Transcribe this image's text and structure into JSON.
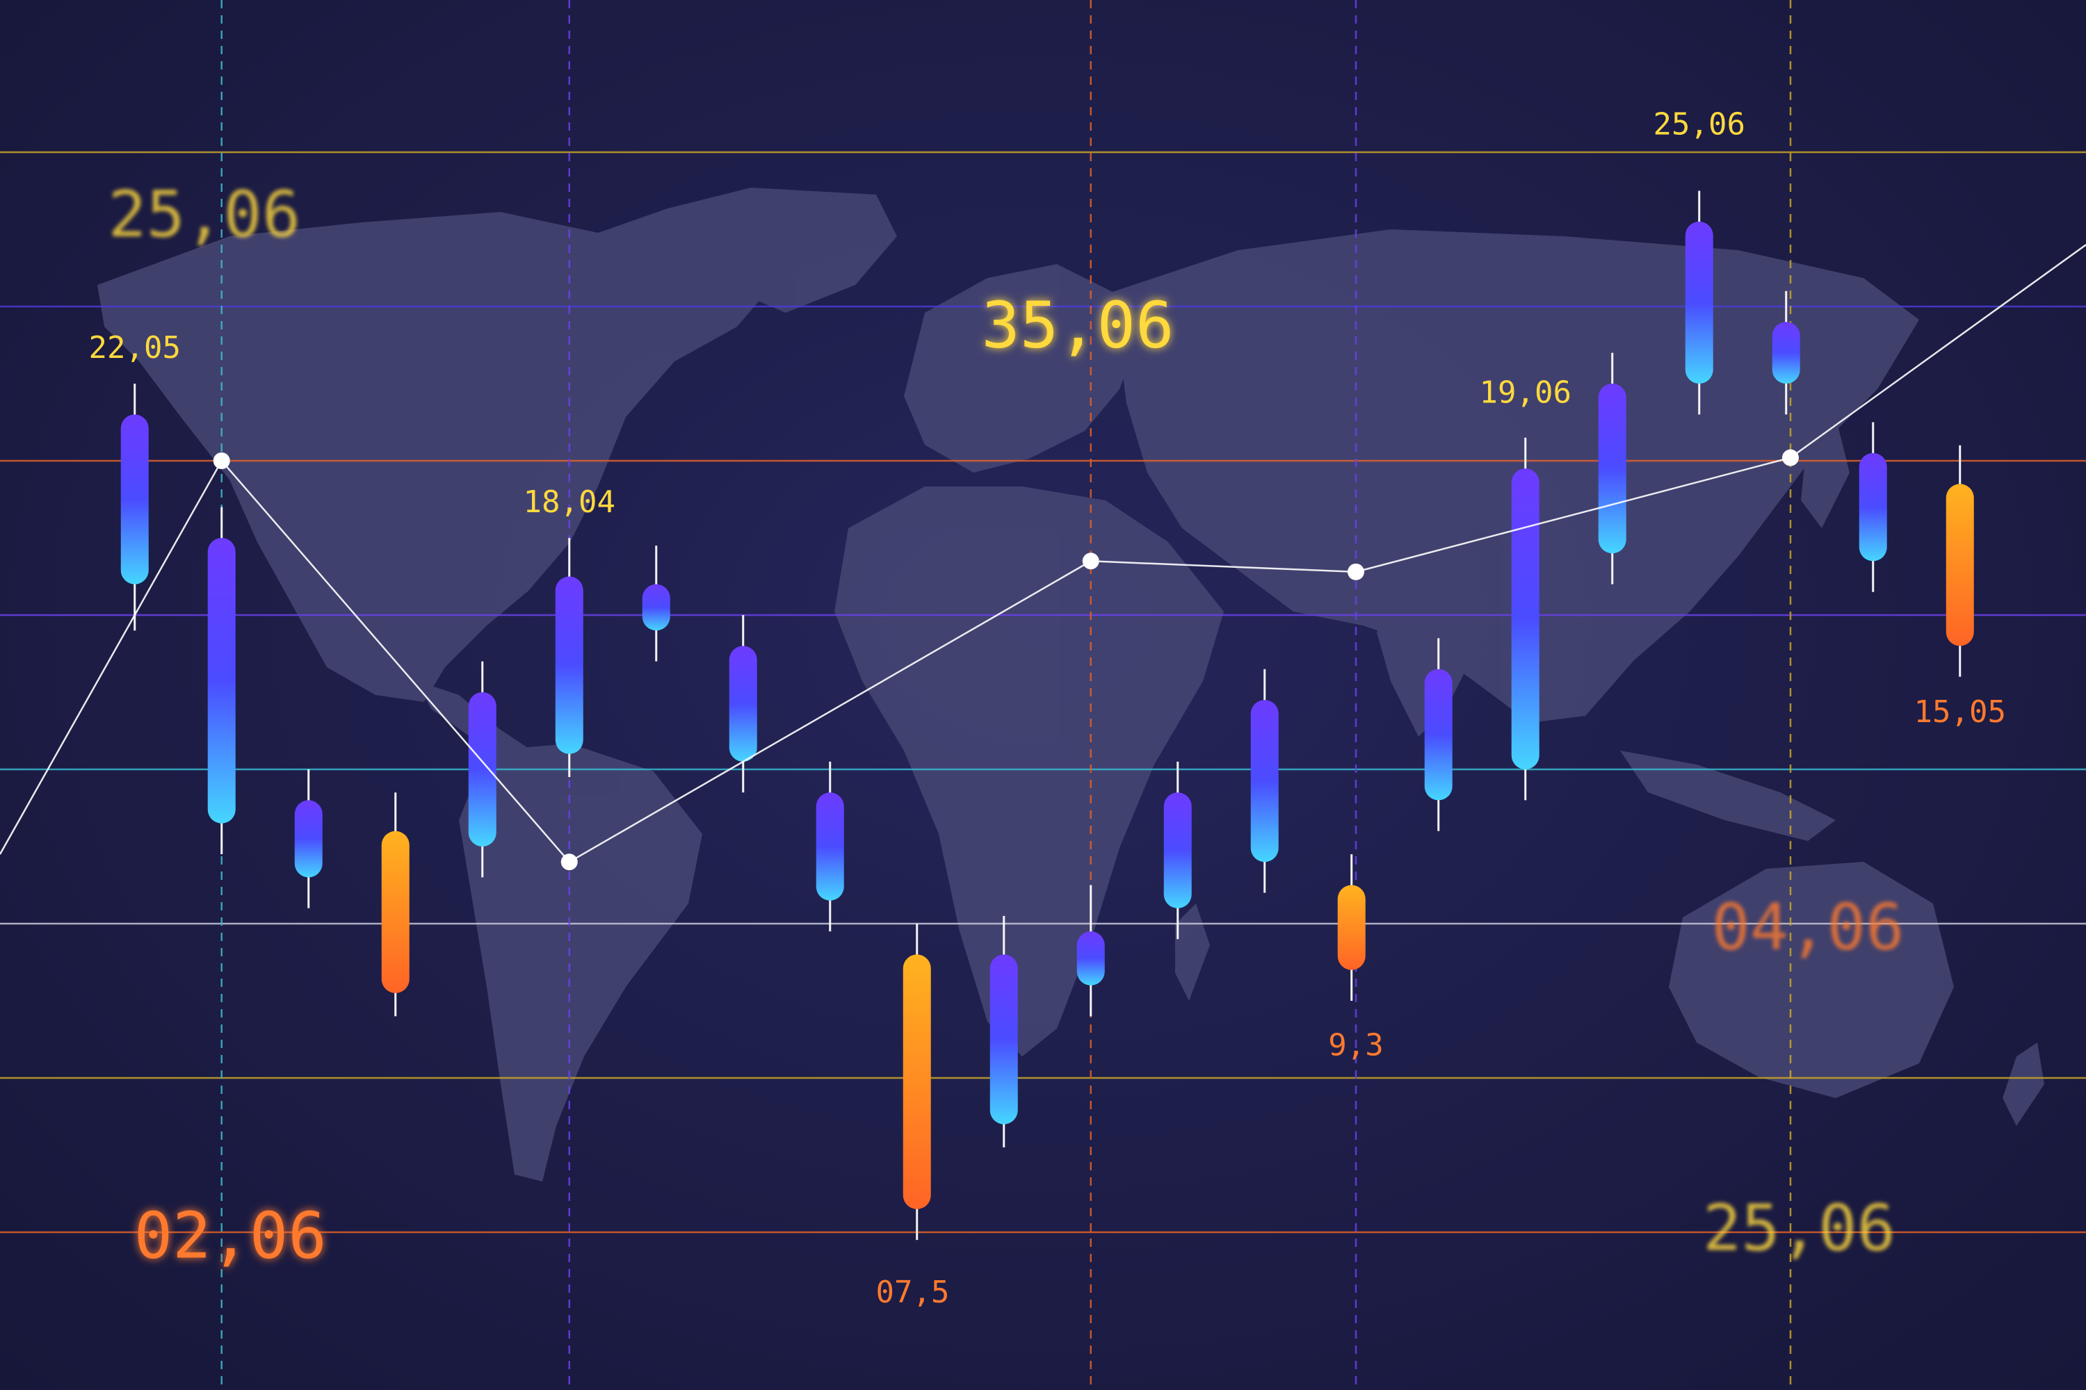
{
  "colors": {
    "background": "#1d1d47",
    "map": "#4a4a78",
    "candle_blue_top": "#6d3bff",
    "candle_blue_mid": "#4b4cff",
    "candle_blue_bottom": "#46d6ff",
    "candle_orange_top": "#ffb31f",
    "candle_orange_bottom": "#ff6426",
    "label_yellow": "#ffd93d",
    "label_orange": "#ff7a2e",
    "line_white": "#ffffff"
  },
  "chart_data": {
    "type": "candlestick",
    "title": "",
    "xlabel": "",
    "ylabel": "",
    "grid": true,
    "x_range": [
      0,
      24
    ],
    "ylim": [
      0,
      9
    ],
    "horizontal_gridlines": [
      {
        "y": 8.0,
        "color": "#c9a526"
      },
      {
        "y": 7.0,
        "color": "#4a3cd8"
      },
      {
        "y": 6.0,
        "color": "#e0602a"
      },
      {
        "y": 5.0,
        "color": "#6a40e8"
      },
      {
        "y": 4.0,
        "color": "#38b8d0"
      },
      {
        "y": 3.0,
        "color": "#c8c8d8"
      },
      {
        "y": 2.0,
        "color": "#c9a526"
      },
      {
        "y": 1.0,
        "color": "#e0602a"
      }
    ],
    "vertical_markers": [
      {
        "x": 2.55,
        "color": "#3fb8c8"
      },
      {
        "x": 6.55,
        "color": "#6a40e8"
      },
      {
        "x": 12.55,
        "color": "#e0602a"
      },
      {
        "x": 15.6,
        "color": "#6a40e8"
      },
      {
        "x": 20.6,
        "color": "#c9a526"
      }
    ],
    "candles": [
      {
        "x": 1.55,
        "open": 6.3,
        "close": 5.2,
        "high": 6.5,
        "low": 4.9,
        "color": "blue"
      },
      {
        "x": 2.55,
        "open": 5.5,
        "close": 3.65,
        "high": 5.7,
        "low": 3.45,
        "color": "blue"
      },
      {
        "x": 3.55,
        "open": 3.8,
        "close": 3.3,
        "high": 4.0,
        "low": 3.1,
        "color": "blue"
      },
      {
        "x": 4.55,
        "open": 3.6,
        "close": 2.55,
        "high": 3.85,
        "low": 2.4,
        "color": "orange"
      },
      {
        "x": 5.55,
        "open": 4.5,
        "close": 3.5,
        "high": 4.7,
        "low": 3.3,
        "color": "blue"
      },
      {
        "x": 6.55,
        "open": 5.25,
        "close": 4.1,
        "high": 5.5,
        "low": 3.95,
        "color": "blue"
      },
      {
        "x": 7.55,
        "open": 5.2,
        "close": 4.9,
        "high": 5.45,
        "low": 4.7,
        "color": "blue"
      },
      {
        "x": 8.55,
        "open": 4.8,
        "close": 4.05,
        "high": 5.0,
        "low": 3.85,
        "color": "blue"
      },
      {
        "x": 9.55,
        "open": 3.85,
        "close": 3.15,
        "high": 4.05,
        "low": 2.95,
        "color": "blue"
      },
      {
        "x": 10.55,
        "open": 2.8,
        "close": 1.15,
        "high": 3.0,
        "low": 0.95,
        "color": "orange"
      },
      {
        "x": 11.55,
        "open": 2.8,
        "close": 1.7,
        "high": 3.05,
        "low": 1.55,
        "color": "blue"
      },
      {
        "x": 12.55,
        "open": 2.95,
        "close": 2.6,
        "high": 3.25,
        "low": 2.4,
        "color": "blue"
      },
      {
        "x": 13.55,
        "open": 3.85,
        "close": 3.1,
        "high": 4.05,
        "low": 2.9,
        "color": "blue"
      },
      {
        "x": 14.55,
        "open": 4.45,
        "close": 3.4,
        "high": 4.65,
        "low": 3.2,
        "color": "blue"
      },
      {
        "x": 15.55,
        "open": 3.25,
        "close": 2.7,
        "high": 3.45,
        "low": 2.5,
        "color": "orange"
      },
      {
        "x": 16.55,
        "open": 4.65,
        "close": 3.8,
        "high": 4.85,
        "low": 3.6,
        "color": "blue"
      },
      {
        "x": 17.55,
        "open": 5.95,
        "close": 4.0,
        "high": 6.15,
        "low": 3.8,
        "color": "blue"
      },
      {
        "x": 18.55,
        "open": 6.5,
        "close": 5.4,
        "high": 6.7,
        "low": 5.2,
        "color": "blue"
      },
      {
        "x": 19.55,
        "open": 7.55,
        "close": 6.5,
        "high": 7.75,
        "low": 6.3,
        "color": "blue"
      },
      {
        "x": 20.55,
        "open": 6.9,
        "close": 6.5,
        "high": 7.1,
        "low": 6.3,
        "color": "blue"
      },
      {
        "x": 21.55,
        "open": 6.05,
        "close": 5.35,
        "high": 6.25,
        "low": 5.15,
        "color": "blue"
      },
      {
        "x": 22.55,
        "open": 5.85,
        "close": 4.8,
        "high": 6.1,
        "low": 4.6,
        "color": "orange"
      }
    ],
    "trend_line": [
      {
        "x": 0,
        "y": 3.45
      },
      {
        "x": 2.55,
        "y": 6.0
      },
      {
        "x": 6.55,
        "y": 3.4
      },
      {
        "x": 12.55,
        "y": 5.35
      },
      {
        "x": 15.6,
        "y": 5.28
      },
      {
        "x": 20.6,
        "y": 6.02
      },
      {
        "x": 24,
        "y": 7.4
      }
    ],
    "trend_points": [
      {
        "x": 2.55,
        "y": 6.0
      },
      {
        "x": 6.55,
        "y": 3.4
      },
      {
        "x": 12.55,
        "y": 5.35
      },
      {
        "x": 15.6,
        "y": 5.28
      },
      {
        "x": 20.6,
        "y": 6.02
      }
    ],
    "annotations": [
      {
        "text": "22,05",
        "x": 1.55,
        "y": 6.72,
        "color": "yellow",
        "size": "small"
      },
      {
        "text": "18,04",
        "x": 6.55,
        "y": 5.72,
        "color": "yellow",
        "size": "small"
      },
      {
        "text": "19,06",
        "x": 17.55,
        "y": 6.43,
        "color": "yellow",
        "size": "small"
      },
      {
        "text": "25,06",
        "x": 19.55,
        "y": 8.17,
        "color": "yellow",
        "size": "small"
      },
      {
        "text": "15,05",
        "x": 22.55,
        "y": 4.36,
        "color": "orange",
        "size": "small"
      },
      {
        "text": "9,3",
        "x": 15.6,
        "y": 2.2,
        "color": "orange",
        "size": "small"
      },
      {
        "text": "07,5",
        "x": 10.5,
        "y": 0.6,
        "color": "orange",
        "size": "small"
      },
      {
        "text": "25,06",
        "x": 2.35,
        "y": 7.57,
        "color": "yellow",
        "size": "big",
        "glow": true
      },
      {
        "text": "35,06",
        "x": 12.4,
        "y": 6.85,
        "color": "yellow",
        "size": "big",
        "glow": false
      },
      {
        "text": "02,06",
        "x": 2.65,
        "y": 0.95,
        "color": "orange",
        "size": "big",
        "glow": false
      },
      {
        "text": "04,06",
        "x": 20.8,
        "y": 2.95,
        "color": "orange",
        "size": "big",
        "glow": true
      },
      {
        "text": "25,06",
        "x": 20.7,
        "y": 1.0,
        "color": "yellow",
        "size": "big",
        "glow": true
      }
    ]
  }
}
